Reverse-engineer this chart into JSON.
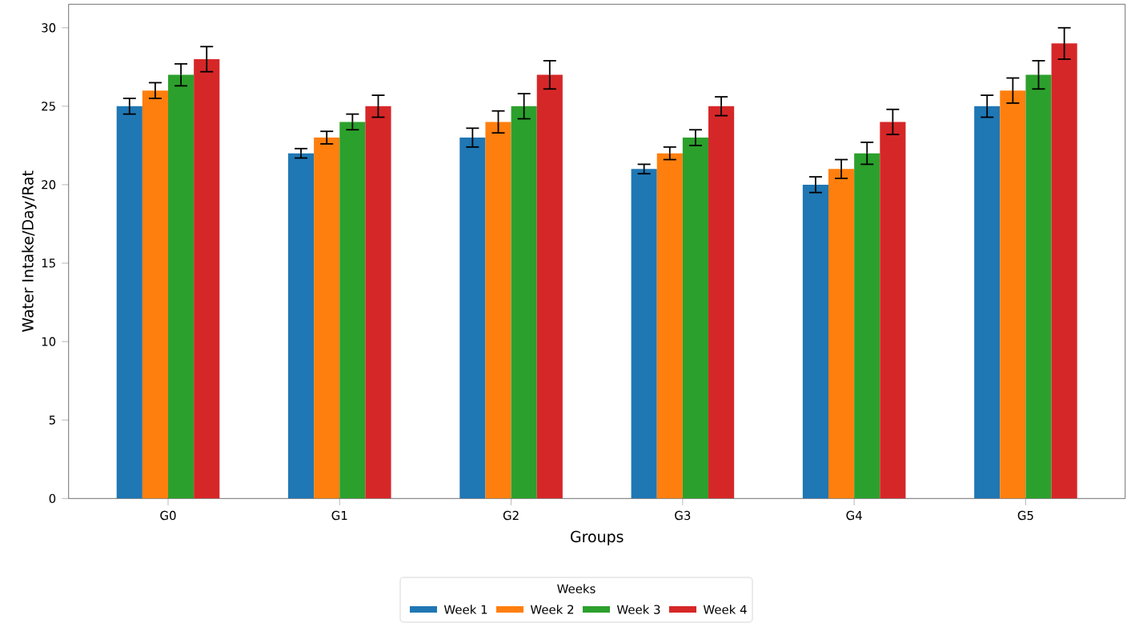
{
  "chart_data": {
    "type": "bar",
    "xlabel": "Groups",
    "ylabel": "Water Intake/Day/Rat",
    "legend_title": "Weeks",
    "legend": "bottom",
    "categories": [
      "G0",
      "G1",
      "G2",
      "G3",
      "G4",
      "G5"
    ],
    "ylim": [
      0,
      31.5
    ],
    "yticks": [
      0,
      5,
      10,
      15,
      20,
      25,
      30
    ],
    "series": [
      {
        "name": "Week 1",
        "color": "#1f77b4",
        "values": [
          25,
          22,
          23,
          21,
          20,
          25
        ],
        "errors": [
          0.5,
          0.3,
          0.6,
          0.3,
          0.5,
          0.7
        ]
      },
      {
        "name": "Week 2",
        "color": "#ff7f0e",
        "values": [
          26,
          23,
          24,
          22,
          21,
          26
        ],
        "errors": [
          0.5,
          0.4,
          0.7,
          0.4,
          0.6,
          0.8
        ]
      },
      {
        "name": "Week 3",
        "color": "#2ca02c",
        "values": [
          27,
          24,
          25,
          23,
          22,
          27
        ],
        "errors": [
          0.7,
          0.5,
          0.8,
          0.5,
          0.7,
          0.9
        ]
      },
      {
        "name": "Week 4",
        "color": "#d62728",
        "values": [
          28,
          25,
          27,
          25,
          24,
          29
        ],
        "errors": [
          0.8,
          0.7,
          0.9,
          0.6,
          0.8,
          1.0
        ]
      }
    ]
  }
}
